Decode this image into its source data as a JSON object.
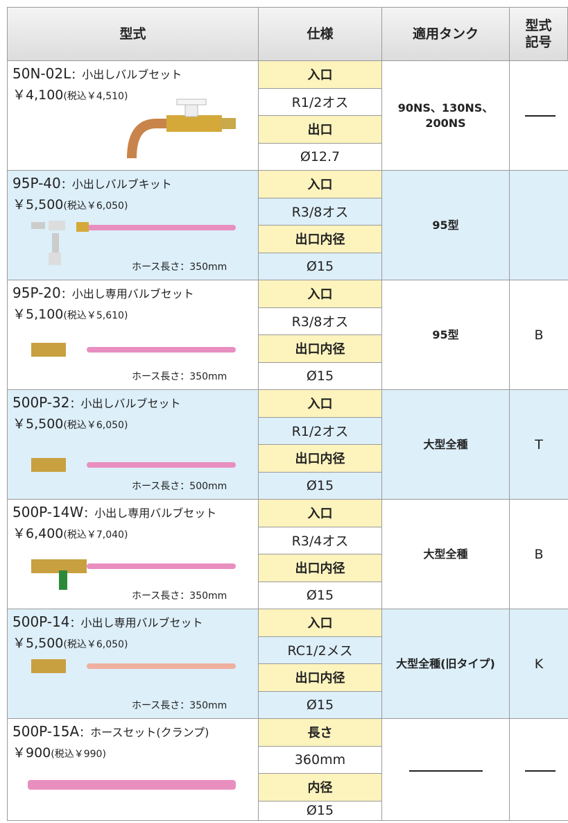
{
  "header": [
    "型式",
    "仕様",
    "適用タンク",
    [
      "型式",
      "記号"
    ]
  ],
  "rows": [
    {
      "model": "50N-02L",
      "name": "：小出しバルブセット",
      "price": "￥4,100",
      "tax": "(税込￥4,510)",
      "spec": [
        "入口",
        "R1/2オス",
        "出口",
        "Ø12.7"
      ],
      "tank": [
        "90NS、130NS、",
        "200NS"
      ],
      "code": null
    },
    {
      "model": "95P-40",
      "name": "：小出しバルブキット",
      "price": "￥5,500",
      "tax": "(税込￥6,050)",
      "hose": "ホース長さ：350mm",
      "spec": [
        "入口",
        "R3/8オス",
        "出口内径",
        "Ø15"
      ],
      "tank": [
        "95型"
      ],
      "code": ""
    },
    {
      "model": "95P-20",
      "name": "：小出し専用バルブセット",
      "price": "￥5,100",
      "tax": "(税込￥5,610)",
      "hose": "ホース長さ：350mm",
      "spec": [
        "入口",
        "R3/8オス",
        "出口内径",
        "Ø15"
      ],
      "tank": [
        "95型"
      ],
      "code": "B"
    },
    {
      "model": "500P-32",
      "name": "：小出しバルブセット",
      "price": "￥5,500",
      "tax": "(税込￥6,050)",
      "hose": "ホース長さ：500mm",
      "spec": [
        "入口",
        "R1/2オス",
        "出口内径",
        "Ø15"
      ],
      "tank": [
        "大型全種"
      ],
      "code": "T"
    },
    {
      "model": "500P-14W",
      "name": "：小出し専用バルブセット",
      "price": "￥6,400",
      "tax": "(税込￥7,040)",
      "hose": "ホース長さ：350mm",
      "spec": [
        "入口",
        "R3/4オス",
        "出口内径",
        "Ø15"
      ],
      "tank": [
        "大型全種"
      ],
      "code": "B"
    },
    {
      "model": "500P-14",
      "name": "：小出し専用バルブセット",
      "price": "￥5,500",
      "tax": "(税込￥6,050)",
      "hose": "ホース長さ：350mm",
      "spec": [
        "入口",
        "RC1/2メス",
        "出口内径",
        "Ø15"
      ],
      "tank": [
        "大型全種(旧タイプ)"
      ],
      "code": "K"
    },
    {
      "model": "500P-15A",
      "name": "：ホースセット(クランプ)",
      "price": "￥900",
      "tax": "(税込￥990)",
      "spec": [
        "長さ",
        "360mm",
        "内径",
        "Ø15"
      ],
      "tank": null,
      "code": null
    }
  ]
}
